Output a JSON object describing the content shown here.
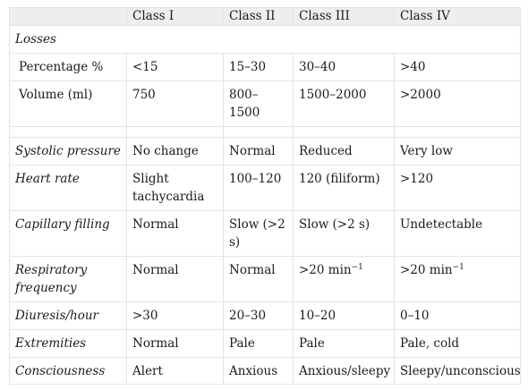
{
  "header": [
    "",
    "Class I",
    "Class II",
    "Class III",
    "Class IV"
  ],
  "losses_label": "Losses",
  "rows": {
    "percentage": [
      "Percentage %",
      "<15",
      "15–30",
      "30–40",
      ">40"
    ],
    "volume": [
      "Volume (ml)",
      "750",
      "800–1500",
      "1500–2000",
      ">2000"
    ],
    "systolic": [
      "Systolic pressure",
      "No change",
      "Normal",
      "Reduced",
      "Very low"
    ],
    "heart_rate": [
      "Heart rate",
      "Slight tachycardia",
      "100–120",
      "120 (filiform)",
      ">120"
    ],
    "capillary": [
      "Capillary filling",
      "Normal",
      "Slow (>2 s)",
      "Slow (>2 s)",
      "Undetectable"
    ],
    "respiratory": [
      "Respiratory frequency",
      "Normal",
      "Normal",
      ">20 min",
      ">20 min"
    ],
    "respiratory_exponent": "−1",
    "diuresis": [
      "Diuresis/hour",
      ">30",
      "20–30",
      "10–20",
      "0–10"
    ],
    "extremities": [
      "Extremities",
      "Normal",
      "Pale",
      "Pale",
      "Pale, cold"
    ],
    "consciousness": [
      "Consciousness",
      "Alert",
      "Anxious",
      "Anxious/sleepy",
      "Sleepy/unconscious"
    ]
  }
}
